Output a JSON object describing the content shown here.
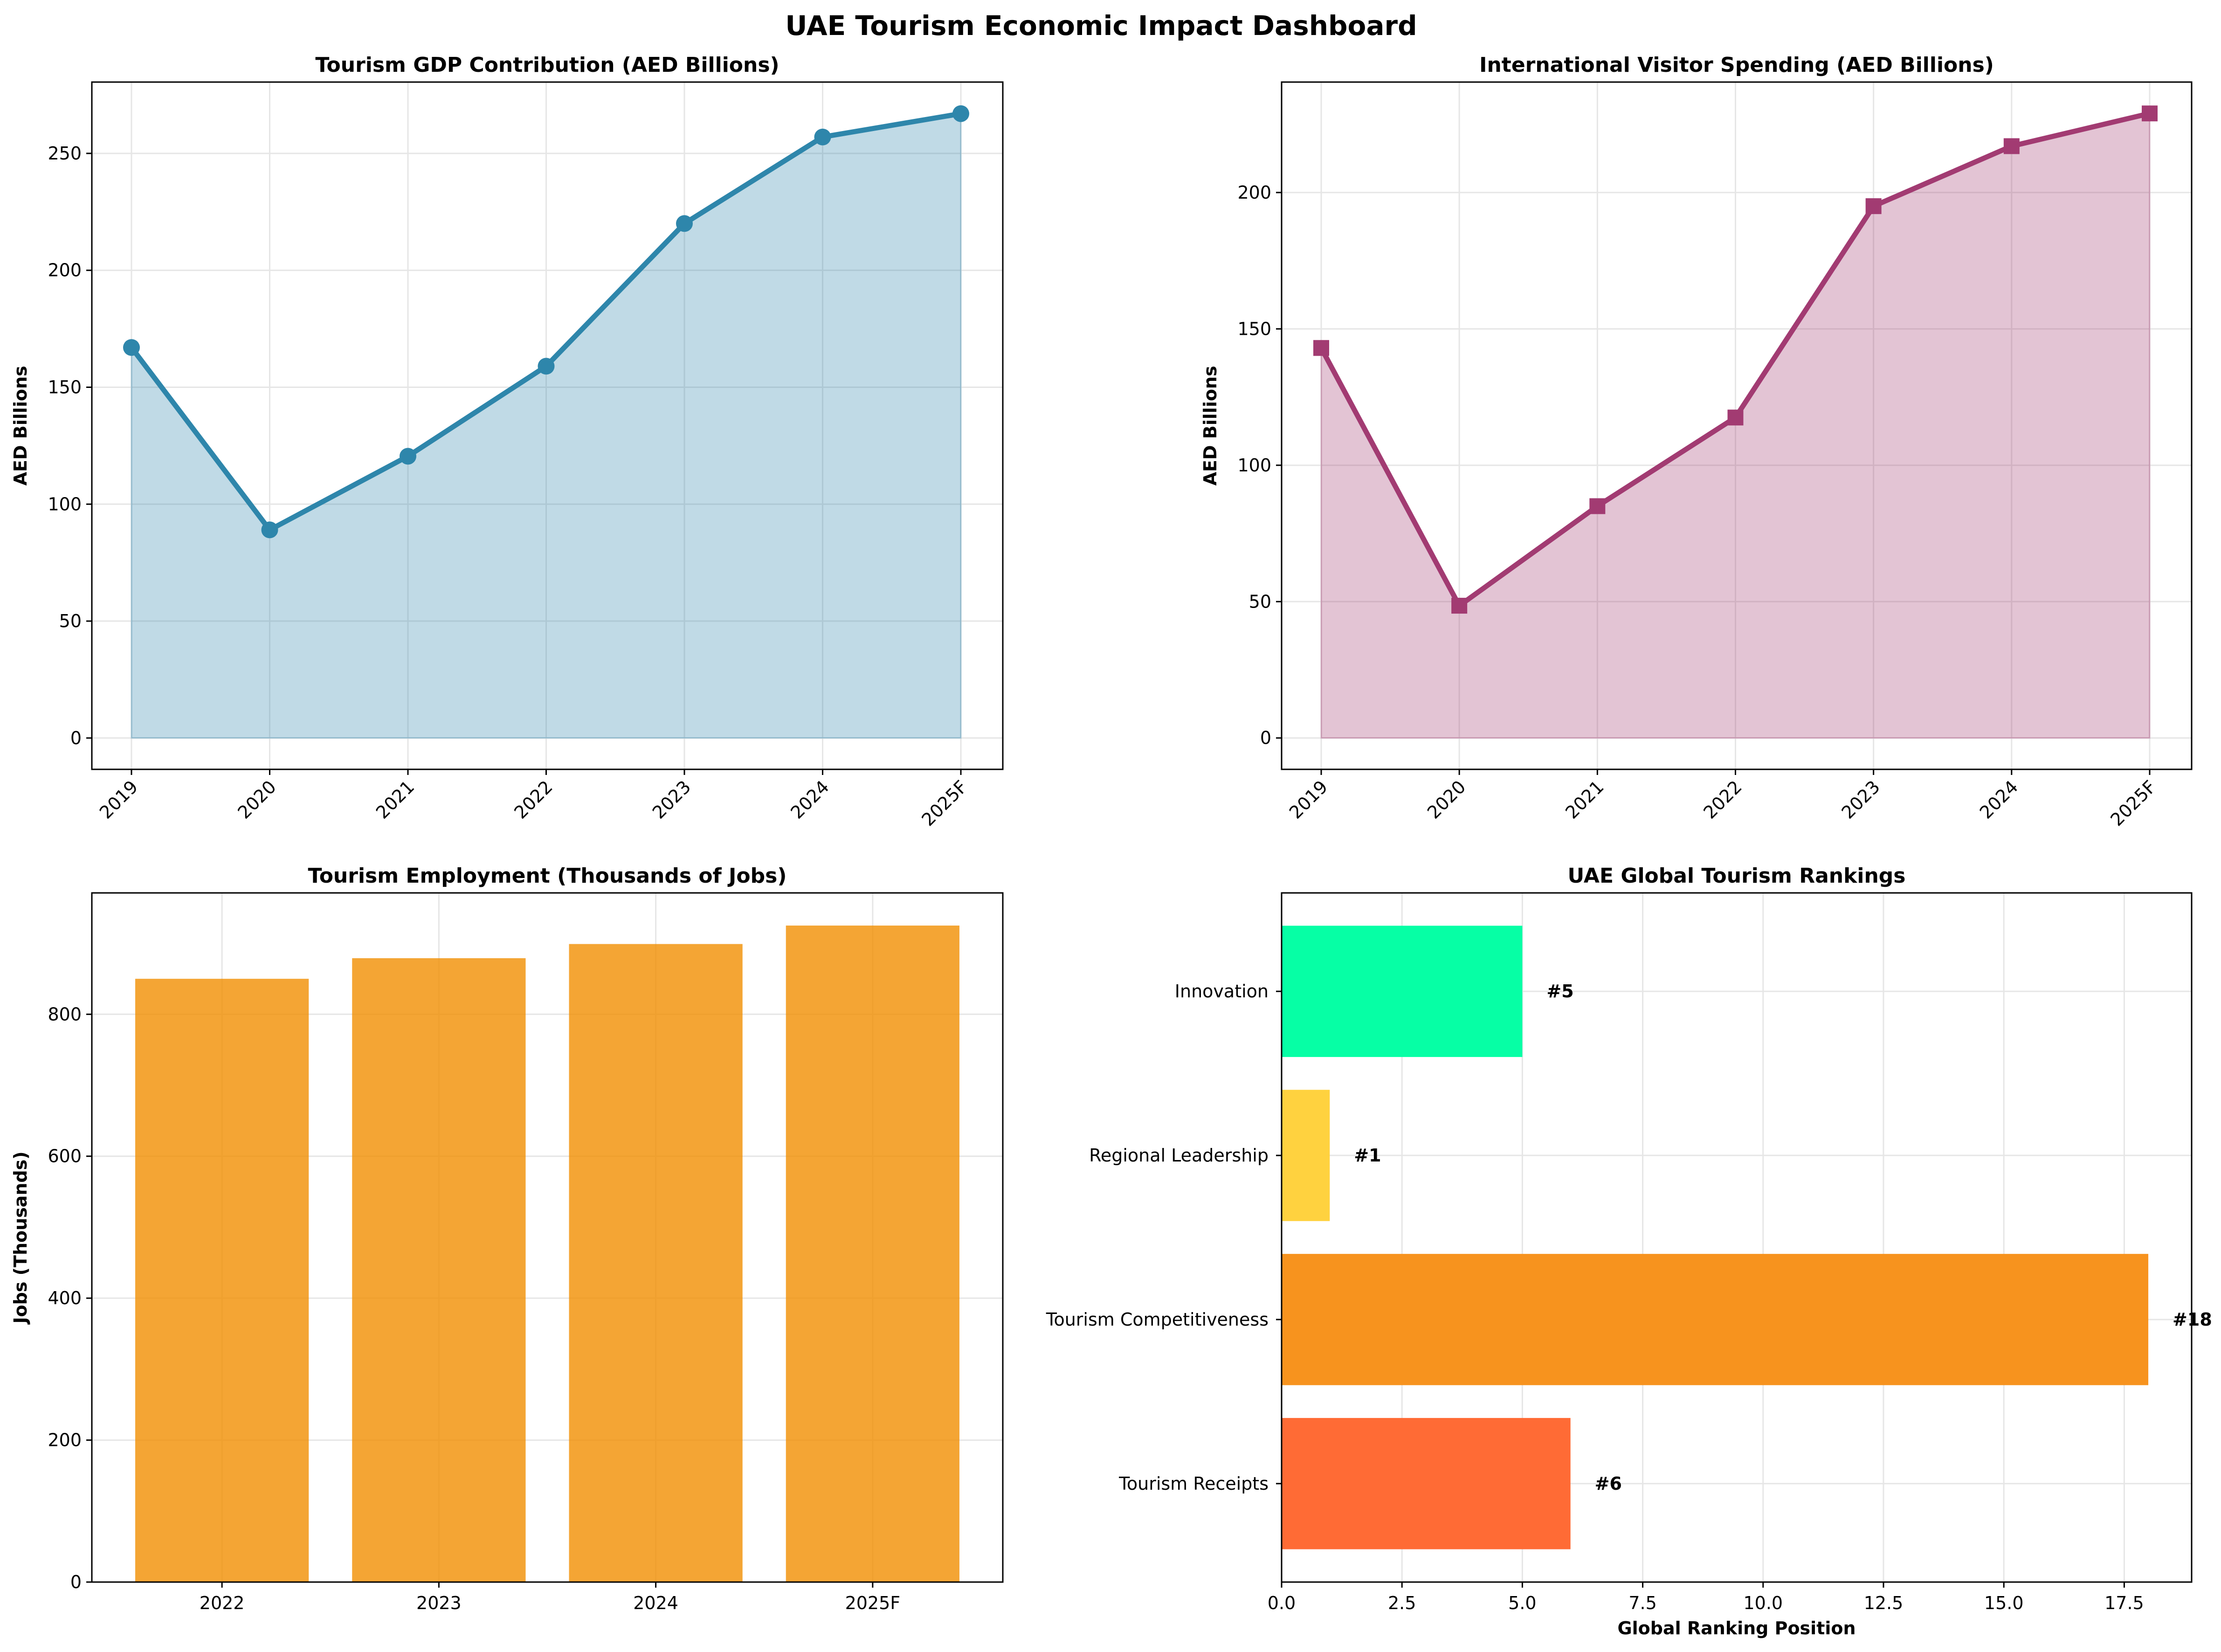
{
  "figure_title": "UAE Tourism Economic Impact Dashboard",
  "chart_data": [
    {
      "type": "area",
      "title": "Tourism GDP Contribution (AED Billions)",
      "xlabel": "",
      "ylabel": "AED Billions",
      "categories": [
        "2019",
        "2020",
        "2021",
        "2022",
        "2023",
        "2024",
        "2025F"
      ],
      "values": [
        167,
        89,
        120.5,
        159,
        220,
        257,
        267
      ],
      "ylim": [
        -13.4,
        280.5
      ],
      "yticks": [
        0,
        50,
        100,
        150,
        200,
        250
      ],
      "color": "#2E86AB",
      "fill_color": "#2E86AB",
      "marker": "circle",
      "grid": true
    },
    {
      "type": "area",
      "title": "International Visitor Spending (AED Billions)",
      "xlabel": "",
      "ylabel": "AED Billions",
      "categories": [
        "2019",
        "2020",
        "2021",
        "2022",
        "2023",
        "2024",
        "2025F"
      ],
      "values": [
        143,
        48.5,
        85,
        117.5,
        195,
        217,
        229
      ],
      "ylim": [
        -11.5,
        240.5
      ],
      "yticks": [
        0,
        50,
        100,
        150,
        200
      ],
      "color": "#A23B72",
      "fill_color": "#A23B72",
      "marker": "square",
      "grid": true
    },
    {
      "type": "bar",
      "title": "Tourism Employment (Thousands of Jobs)",
      "xlabel": "",
      "ylabel": "Jobs (Thousands)",
      "categories": [
        "2022",
        "2023",
        "2024",
        "2025F"
      ],
      "values": [
        850,
        879,
        899,
        925
      ],
      "ylim": [
        0,
        971
      ],
      "yticks": [
        0,
        200,
        400,
        600,
        800
      ],
      "color": "#F18F01",
      "grid": true
    },
    {
      "type": "bar",
      "orientation": "horizontal",
      "title": "UAE Global Tourism Rankings",
      "xlabel": "Global Ranking Position",
      "ylabel": "",
      "categories": [
        "Tourism Receipts",
        "Tourism Competitiveness",
        "Regional Leadership",
        "Innovation"
      ],
      "values": [
        6,
        18,
        1,
        5
      ],
      "data_labels": [
        "#6",
        "#18",
        "#1",
        "#5"
      ],
      "colors": [
        "#FF6B35",
        "#F7931E",
        "#FFD23F",
        "#06FFA5"
      ],
      "xlim": [
        0,
        18.9
      ],
      "xticks": [
        "0.0",
        "2.5",
        "5.0",
        "7.5",
        "10.0",
        "12.5",
        "15.0",
        "17.5"
      ],
      "grid": true
    }
  ]
}
